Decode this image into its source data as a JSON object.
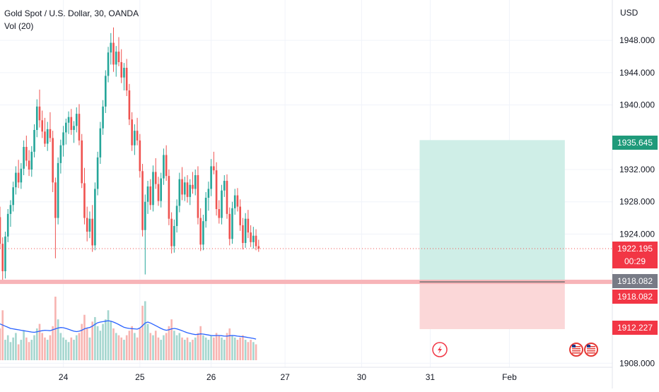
{
  "header": {
    "symbol_line": "Gold Spot / U.S. Dollar, 30, OANDA",
    "volume_line": "Vol (20)"
  },
  "chart_data": {
    "type": "candlestick",
    "title": "Gold Spot / U.S. Dollar, 30, OANDA",
    "currency": "USD",
    "y_ticks": [
      1948.0,
      1944.0,
      1940.0,
      1932.0,
      1928.0,
      1924.0,
      1908.0
    ],
    "y_tick_labels": [
      "1948.000",
      "1944.000",
      "1940.000",
      "1932.000",
      "1928.000",
      "1924.000",
      "1908.000"
    ],
    "ylim": [
      1907.5,
      1953.0
    ],
    "x_tick_labels": [
      "24",
      "25",
      "26",
      "27",
      "30",
      "31",
      "Feb"
    ],
    "x_tick_index": [
      24,
      53,
      80,
      108,
      137,
      163,
      193
    ],
    "index_range": [
      0,
      232
    ],
    "candles": [
      [
        1926.1,
        1927.4,
        1922.2,
        1922.8
      ],
      [
        1922.8,
        1923.6,
        1918.1,
        1919.4
      ],
      [
        1919.4,
        1924.3,
        1918.5,
        1923.7
      ],
      [
        1923.7,
        1927.1,
        1923.0,
        1926.5
      ],
      [
        1926.5,
        1928.2,
        1924.9,
        1927.6
      ],
      [
        1927.6,
        1930.5,
        1926.8,
        1929.8
      ],
      [
        1929.8,
        1932.4,
        1928.9,
        1931.6
      ],
      [
        1931.6,
        1933.2,
        1929.7,
        1930.4
      ],
      [
        1930.4,
        1932.8,
        1929.6,
        1932.1
      ],
      [
        1932.1,
        1935.6,
        1931.3,
        1934.8
      ],
      [
        1934.8,
        1936.2,
        1932.4,
        1933.1
      ],
      [
        1933.1,
        1934.4,
        1931.2,
        1932.0
      ],
      [
        1932.0,
        1934.9,
        1931.1,
        1934.2
      ],
      [
        1934.2,
        1937.6,
        1933.5,
        1936.9
      ],
      [
        1936.9,
        1940.7,
        1936.0,
        1939.8
      ],
      [
        1939.8,
        1941.9,
        1937.2,
        1938.1
      ],
      [
        1938.1,
        1939.3,
        1935.9,
        1936.7
      ],
      [
        1936.7,
        1938.4,
        1934.8,
        1935.2
      ],
      [
        1935.2,
        1937.9,
        1934.3,
        1937.0
      ],
      [
        1937.0,
        1939.1,
        1935.4,
        1935.9
      ],
      [
        1935.9,
        1936.8,
        1929.2,
        1930.4
      ],
      [
        1930.4,
        1931.0,
        1921.0,
        1926.0
      ],
      [
        1926.0,
        1933.5,
        1925.2,
        1932.8
      ],
      [
        1932.8,
        1935.7,
        1931.5,
        1935.0
      ],
      [
        1935.0,
        1937.4,
        1933.6,
        1936.6
      ],
      [
        1936.6,
        1938.3,
        1935.1,
        1937.8
      ],
      [
        1937.8,
        1939.2,
        1936.4,
        1938.5
      ],
      [
        1938.5,
        1939.5,
        1936.3,
        1936.9
      ],
      [
        1936.9,
        1938.0,
        1935.3,
        1937.4
      ],
      [
        1937.4,
        1939.7,
        1936.6,
        1938.9
      ],
      [
        1938.9,
        1940.1,
        1935.0,
        1935.6
      ],
      [
        1935.6,
        1936.4,
        1929.7,
        1930.3
      ],
      [
        1930.3,
        1932.2,
        1925.2,
        1926.0
      ],
      [
        1926.0,
        1927.4,
        1923.1,
        1924.3
      ],
      [
        1924.3,
        1926.8,
        1923.5,
        1925.9
      ],
      [
        1925.9,
        1927.6,
        1921.8,
        1922.6
      ],
      [
        1922.6,
        1930.4,
        1922.0,
        1929.6
      ],
      [
        1929.6,
        1934.2,
        1928.8,
        1933.5
      ],
      [
        1933.5,
        1937.9,
        1932.7,
        1937.1
      ],
      [
        1937.1,
        1940.6,
        1936.3,
        1939.8
      ],
      [
        1939.8,
        1944.3,
        1939.0,
        1943.6
      ],
      [
        1943.6,
        1947.2,
        1942.8,
        1946.5
      ],
      [
        1946.5,
        1948.9,
        1945.0,
        1947.7
      ],
      [
        1947.7,
        1949.6,
        1944.1,
        1945.0
      ],
      [
        1945.0,
        1947.3,
        1943.5,
        1946.6
      ],
      [
        1946.6,
        1948.4,
        1944.8,
        1945.3
      ],
      [
        1945.3,
        1946.9,
        1942.7,
        1943.4
      ],
      [
        1943.4,
        1945.2,
        1941.8,
        1944.6
      ],
      [
        1944.6,
        1945.7,
        1941.1,
        1941.8
      ],
      [
        1941.8,
        1942.6,
        1937.5,
        1938.2
      ],
      [
        1938.2,
        1939.1,
        1934.3,
        1935.0
      ],
      [
        1935.0,
        1937.6,
        1933.8,
        1936.8
      ],
      [
        1936.8,
        1938.4,
        1935.0,
        1935.6
      ],
      [
        1935.6,
        1936.4,
        1931.0,
        1931.8
      ],
      [
        1931.8,
        1932.7,
        1923.7,
        1924.5
      ],
      [
        1924.5,
        1928.9,
        1919.0,
        1928.0
      ],
      [
        1928.0,
        1930.6,
        1926.5,
        1929.9
      ],
      [
        1929.9,
        1930.8,
        1927.0,
        1927.6
      ],
      [
        1927.6,
        1932.5,
        1926.8,
        1931.7
      ],
      [
        1931.7,
        1933.4,
        1929.6,
        1930.2
      ],
      [
        1930.2,
        1931.1,
        1927.5,
        1928.1
      ],
      [
        1928.1,
        1931.6,
        1927.3,
        1930.9
      ],
      [
        1930.9,
        1934.6,
        1930.1,
        1933.8
      ],
      [
        1933.8,
        1935.0,
        1930.6,
        1931.2
      ],
      [
        1931.2,
        1932.0,
        1925.1,
        1925.9
      ],
      [
        1925.9,
        1926.7,
        1921.6,
        1922.5
      ],
      [
        1922.5,
        1925.8,
        1921.7,
        1925.0
      ],
      [
        1925.0,
        1928.3,
        1924.2,
        1927.5
      ],
      [
        1927.5,
        1931.6,
        1926.7,
        1930.8
      ],
      [
        1930.8,
        1932.3,
        1928.2,
        1928.9
      ],
      [
        1928.9,
        1931.1,
        1928.1,
        1930.4
      ],
      [
        1930.4,
        1931.3,
        1927.9,
        1928.6
      ],
      [
        1928.6,
        1930.8,
        1927.6,
        1930.1
      ],
      [
        1930.1,
        1931.7,
        1929.0,
        1929.6
      ],
      [
        1929.6,
        1932.0,
        1928.8,
        1931.3
      ],
      [
        1931.3,
        1932.4,
        1925.2,
        1926.0
      ],
      [
        1926.0,
        1927.2,
        1921.9,
        1922.7
      ],
      [
        1922.7,
        1926.4,
        1922.0,
        1925.6
      ],
      [
        1925.6,
        1929.2,
        1924.8,
        1928.5
      ],
      [
        1928.5,
        1930.5,
        1926.9,
        1929.6
      ],
      [
        1929.6,
        1933.3,
        1928.7,
        1932.4
      ],
      [
        1932.4,
        1934.2,
        1931.4,
        1931.9
      ],
      [
        1931.9,
        1932.9,
        1926.3,
        1927.1
      ],
      [
        1927.1,
        1928.2,
        1925.3,
        1926.0
      ],
      [
        1926.0,
        1930.1,
        1925.2,
        1929.4
      ],
      [
        1929.4,
        1931.3,
        1928.6,
        1930.6
      ],
      [
        1930.6,
        1931.4,
        1925.9,
        1926.5
      ],
      [
        1926.5,
        1927.3,
        1922.6,
        1923.4
      ],
      [
        1923.4,
        1928.0,
        1922.8,
        1927.2
      ],
      [
        1927.2,
        1929.6,
        1926.4,
        1928.8
      ],
      [
        1928.8,
        1929.7,
        1926.8,
        1927.4
      ],
      [
        1927.4,
        1928.3,
        1924.4,
        1925.1
      ],
      [
        1925.1,
        1926.0,
        1922.1,
        1922.9
      ],
      [
        1922.9,
        1926.6,
        1922.3,
        1925.9
      ],
      [
        1925.9,
        1927.0,
        1923.5,
        1924.2
      ],
      [
        1924.2,
        1925.1,
        1922.4,
        1923.0
      ],
      [
        1923.0,
        1924.9,
        1922.2,
        1923.8
      ],
      [
        1923.8,
        1924.6,
        1922.0,
        1922.5
      ],
      [
        1922.5,
        1923.3,
        1921.8,
        1922.2
      ]
    ],
    "volume": [
      14,
      22,
      9,
      11,
      8,
      10,
      12,
      7,
      9,
      13,
      10,
      8,
      9,
      11,
      14,
      16,
      12,
      10,
      9,
      11,
      15,
      28,
      18,
      12,
      10,
      9,
      8,
      10,
      9,
      11,
      12,
      16,
      20,
      14,
      10,
      17,
      19,
      15,
      13,
      16,
      18,
      22,
      17,
      14,
      12,
      11,
      10,
      9,
      11,
      13,
      15,
      12,
      10,
      14,
      24,
      26,
      16,
      12,
      11,
      13,
      10,
      9,
      11,
      12,
      15,
      18,
      13,
      11,
      12,
      10,
      9,
      10,
      8,
      9,
      10,
      12,
      15,
      11,
      10,
      9,
      11,
      10,
      12,
      11,
      10,
      9,
      12,
      14,
      11,
      10,
      9,
      10,
      11,
      9,
      8,
      9,
      8,
      7
    ],
    "volume_ma": [
      16,
      15.5,
      15,
      14.5,
      14,
      13.8,
      13.6,
      13.4,
      13.2,
      13,
      12.8,
      12.6,
      12.4,
      12.3,
      12.5,
      12.8,
      13,
      13.2,
      13.1,
      13,
      13.4,
      13.8,
      14.2,
      14.4,
      14.3,
      14,
      13.6,
      13.2,
      12.8,
      12.6,
      12.8,
      13.2,
      13.8,
      14.2,
      14.4,
      15,
      15.8,
      16.5,
      16.8,
      17,
      17.2,
      17.4,
      17.2,
      16.8,
      16.3,
      15.7,
      15.1,
      14.5,
      14.2,
      14,
      13.9,
      13.8,
      13.7,
      14.2,
      15.2,
      16.4,
      16.8,
      16.4,
      15.8,
      15.2,
      14.6,
      14,
      13.5,
      13.2,
      13.4,
      13.8,
      14,
      13.8,
      13.4,
      13,
      12.5,
      12.1,
      11.8,
      11.5,
      11.3,
      11.4,
      11.6,
      11.5,
      11.3,
      11.1,
      10.9,
      10.8,
      10.9,
      10.9,
      10.8,
      10.6,
      10.6,
      10.8,
      10.9,
      10.8,
      10.6,
      10.5,
      10.4,
      10.2,
      10,
      9.8,
      9.6,
      9.3
    ],
    "current_price": 1922.195,
    "countdown": "00:29",
    "position": {
      "entry": 1918.082,
      "target": 1935.645,
      "stop": 1912.227
    },
    "flag_labels": [
      "US",
      "US"
    ]
  },
  "price_badges": {
    "target": "1935.645",
    "current": "1922.195",
    "countdown": "00:29",
    "entry_gray": "1918.082",
    "entry_red": "1918.082",
    "stop": "1912.227"
  },
  "axis": {
    "currency": "USD"
  },
  "colors": {
    "up": "#26a69a",
    "down": "#ef5350",
    "volume_up": "#a5d6cf",
    "volume_down": "#f7b4b1",
    "volume_ma": "#2962ff",
    "target_zone": "#cfeee7",
    "stop_zone": "#fbd7d8",
    "entry_band": "#f7b4b8",
    "badge_green": "#1f9a7a",
    "badge_red": "#f23645",
    "badge_gray": "#787b86"
  },
  "icons": {
    "lightning": "lightning-icon",
    "flags": "us-flag-icon"
  }
}
